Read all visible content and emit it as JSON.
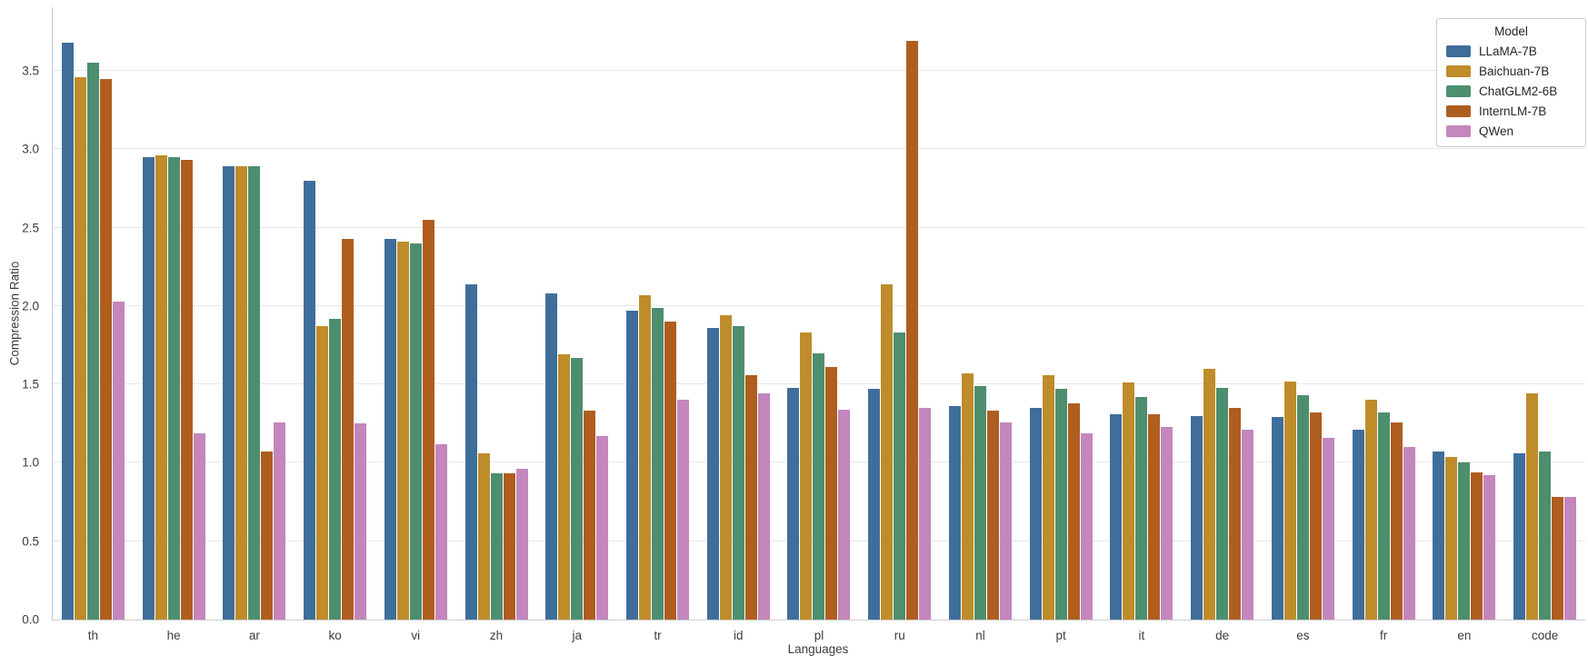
{
  "chart_data": {
    "type": "bar",
    "title": "",
    "xlabel": "Languages",
    "ylabel": "Compression Ratio",
    "legend_title": "Model",
    "legend_position": "top-right",
    "grid": true,
    "ylim": [
      0,
      3.9
    ],
    "yticks": [
      "0.0",
      "0.5",
      "1.0",
      "1.5",
      "2.0",
      "2.5",
      "3.0",
      "3.5"
    ],
    "categories": [
      "th",
      "he",
      "ar",
      "ko",
      "vi",
      "zh",
      "ja",
      "tr",
      "id",
      "pl",
      "ru",
      "nl",
      "pt",
      "it",
      "de",
      "es",
      "fr",
      "en",
      "code"
    ],
    "series": [
      {
        "name": "LLaMA-7B",
        "color": "#3F6E9B",
        "values": [
          3.68,
          2.95,
          2.89,
          2.8,
          2.43,
          2.14,
          2.08,
          1.97,
          1.86,
          1.48,
          1.47,
          1.36,
          1.35,
          1.31,
          1.3,
          1.29,
          1.21,
          1.07,
          1.06
        ]
      },
      {
        "name": "Baichuan-7B",
        "color": "#BF8C2A",
        "values": [
          3.46,
          2.96,
          2.89,
          1.87,
          2.41,
          1.06,
          1.69,
          2.07,
          1.94,
          1.83,
          2.14,
          1.57,
          1.56,
          1.51,
          1.6,
          1.52,
          1.4,
          1.04,
          1.44
        ]
      },
      {
        "name": "ChatGLM2-6B",
        "color": "#4D8E6F",
        "values": [
          3.55,
          2.95,
          2.89,
          1.92,
          2.4,
          0.93,
          1.67,
          1.99,
          1.87,
          1.7,
          1.83,
          1.49,
          1.47,
          1.42,
          1.48,
          1.43,
          1.32,
          1.0,
          1.07
        ]
      },
      {
        "name": "InternLM-7B",
        "color": "#B05D20",
        "values": [
          3.45,
          2.93,
          1.07,
          2.43,
          2.55,
          0.93,
          1.33,
          1.9,
          1.56,
          1.61,
          3.69,
          1.33,
          1.38,
          1.31,
          1.35,
          1.32,
          1.26,
          0.94,
          0.78
        ]
      },
      {
        "name": "QWen",
        "color": "#C386BD",
        "values": [
          2.03,
          1.19,
          1.26,
          1.25,
          1.12,
          0.96,
          1.17,
          1.4,
          1.44,
          1.34,
          1.35,
          1.26,
          1.19,
          1.23,
          1.21,
          1.16,
          1.1,
          0.92,
          0.78
        ]
      }
    ]
  }
}
